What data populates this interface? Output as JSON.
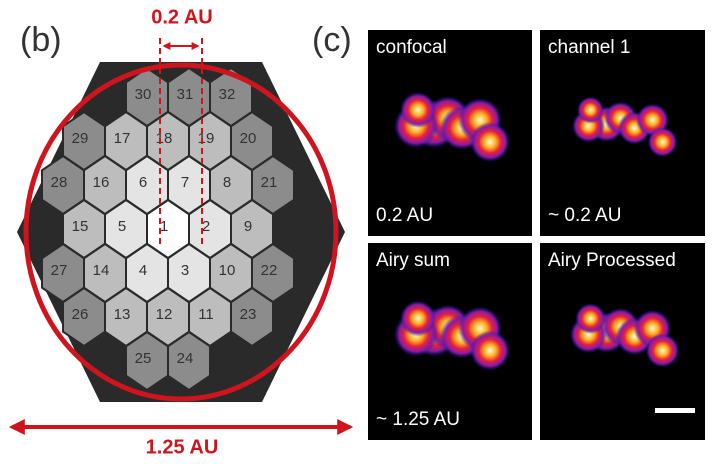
{
  "panel_b": {
    "label": "(b)",
    "top_annotation": "0.2 AU",
    "bottom_annotation": "1.25 AU",
    "elements": [
      "1",
      "2",
      "3",
      "4",
      "5",
      "6",
      "7",
      "8",
      "9",
      "10",
      "11",
      "12",
      "13",
      "14",
      "15",
      "16",
      "17",
      "18",
      "19",
      "20",
      "21",
      "22",
      "23",
      "24",
      "25",
      "26",
      "27",
      "28",
      "29",
      "30",
      "31",
      "32"
    ]
  },
  "panel_c": {
    "label": "(c)",
    "images": [
      {
        "title": "confocal",
        "caption": "0.2 AU"
      },
      {
        "title": "channel 1",
        "caption": "~ 0.2 AU"
      },
      {
        "title": "Airy sum",
        "caption": "~ 1.25 AU"
      },
      {
        "title": "Airy Processed"
      }
    ]
  }
}
